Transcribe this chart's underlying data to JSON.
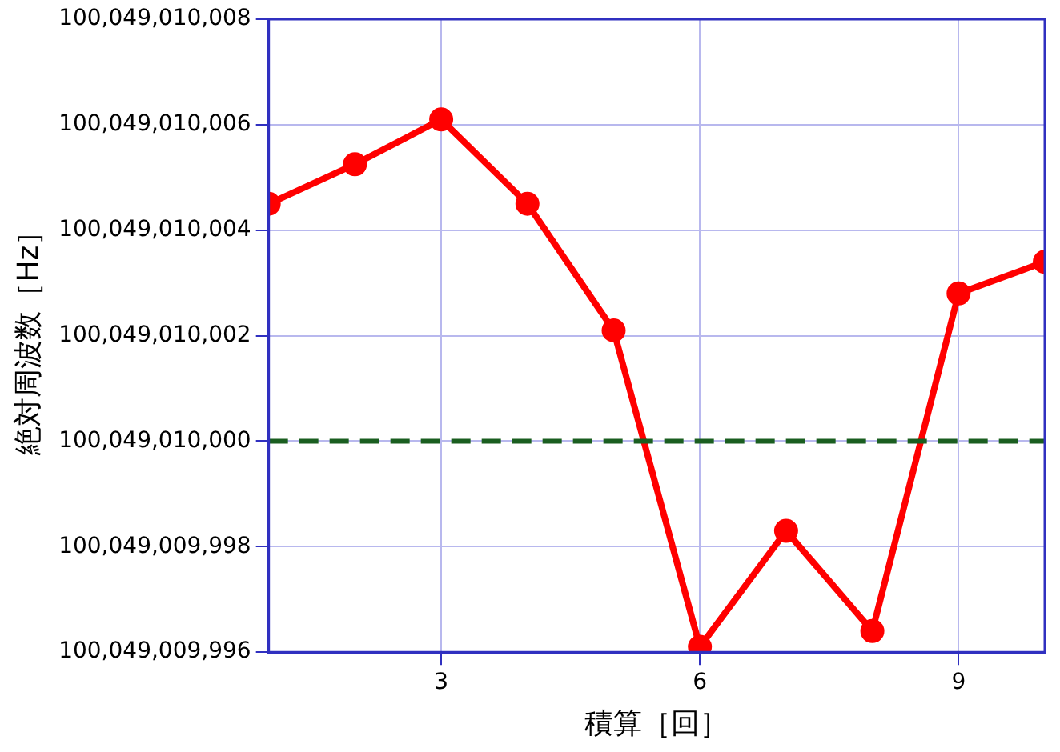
{
  "chart_data": {
    "type": "line",
    "xlabel": "積算［回］",
    "ylabel": "絶対周波数［Hz］",
    "x": [
      1,
      2,
      3,
      4,
      5,
      6,
      7,
      8,
      9,
      10
    ],
    "series": [
      {
        "color": "#ff0000",
        "values": [
          100049010004.5,
          100049010005.25,
          100049010006.1,
          100049010004.5,
          100049010002.1,
          100049009996.1,
          100049009998.3,
          100049009996.4,
          100049010002.8,
          100049010003.4
        ]
      }
    ],
    "xlim": [
      1,
      10
    ],
    "xticks": [
      3,
      6,
      9
    ],
    "ylim": [
      100049009996,
      100049010008
    ],
    "yticks": [
      {
        "value": 100049009996,
        "label": "100,049,009,996"
      },
      {
        "value": 100049009998,
        "label": "100,049,009,998"
      },
      {
        "value": 100049010000,
        "label": "100,049,010,000"
      },
      {
        "value": 100049010002,
        "label": "100,049,010,002"
      },
      {
        "value": 100049010004,
        "label": "100,049,010,004"
      },
      {
        "value": 100049010006,
        "label": "100,049,010,006"
      },
      {
        "value": 100049010008,
        "label": "100,049,010,008"
      }
    ],
    "ref_lines": [
      {
        "axis": "y",
        "value": 100049010000,
        "color": "#1a5e20",
        "line_style": "dashed"
      }
    ],
    "grid": true,
    "legend": false,
    "marker": "circle",
    "line_style": "solid"
  }
}
